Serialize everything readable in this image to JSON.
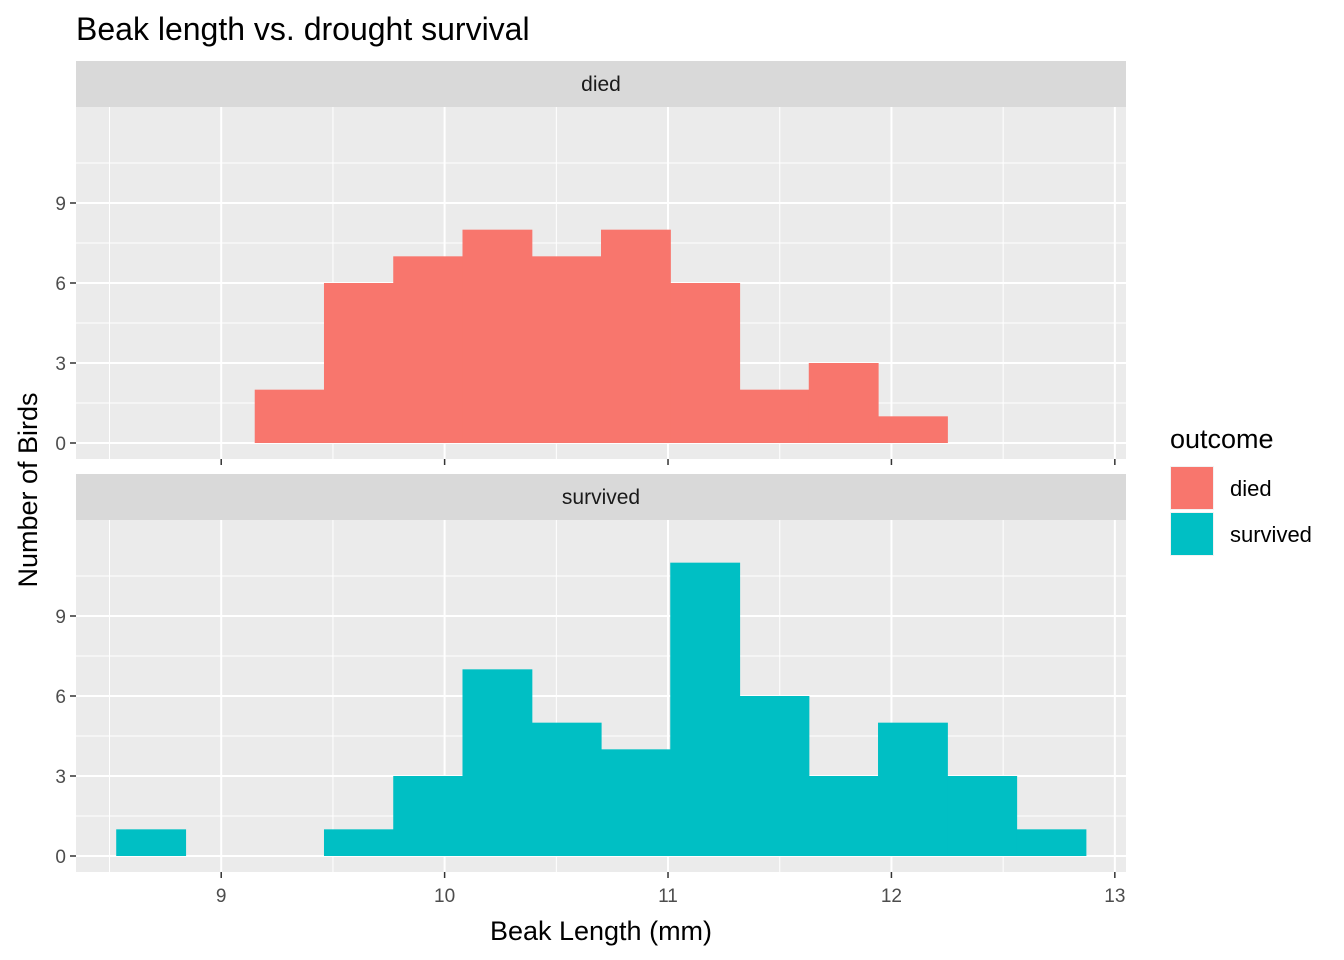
{
  "chart_data": {
    "type": "bar",
    "title": "Beak length vs. drought survival",
    "xlabel": "Beak Length (mm)",
    "ylabel": "Number of Birds",
    "xlim": [
      8.35,
      13.05
    ],
    "ylim": [
      -0.6,
      12.6
    ],
    "x_ticks": [
      9,
      10,
      11,
      12,
      13
    ],
    "y_ticks": [
      0,
      3,
      6,
      9
    ],
    "grid": true,
    "legend": {
      "title": "outcome",
      "position": "right",
      "entries": [
        {
          "label": "died",
          "color": "#F8766D"
        },
        {
          "label": "survived",
          "color": "#00BFC4"
        }
      ]
    },
    "panels": [
      {
        "name": "died",
        "color": "#F8766D",
        "bins": [
          {
            "x0": 9.15,
            "x1": 9.46,
            "count": 2
          },
          {
            "x0": 9.46,
            "x1": 9.77,
            "count": 6
          },
          {
            "x0": 9.77,
            "x1": 10.08,
            "count": 7
          },
          {
            "x0": 10.08,
            "x1": 10.39,
            "count": 8
          },
          {
            "x0": 10.39,
            "x1": 10.7,
            "count": 7
          },
          {
            "x0": 10.7,
            "x1": 11.01,
            "count": 8
          },
          {
            "x0": 11.01,
            "x1": 11.32,
            "count": 6
          },
          {
            "x0": 11.32,
            "x1": 11.63,
            "count": 2
          },
          {
            "x0": 11.63,
            "x1": 11.94,
            "count": 3
          },
          {
            "x0": 11.94,
            "x1": 12.25,
            "count": 1
          }
        ]
      },
      {
        "name": "survived",
        "color": "#00BFC4",
        "bins": [
          {
            "x0": 8.53,
            "x1": 8.84,
            "count": 1
          },
          {
            "x0": 9.46,
            "x1": 9.77,
            "count": 1
          },
          {
            "x0": 9.77,
            "x1": 10.08,
            "count": 3
          },
          {
            "x0": 10.08,
            "x1": 10.39,
            "count": 7
          },
          {
            "x0": 10.39,
            "x1": 10.7,
            "count": 5
          },
          {
            "x0": 10.7,
            "x1": 11.01,
            "count": 4
          },
          {
            "x0": 11.01,
            "x1": 11.32,
            "count": 11
          },
          {
            "x0": 11.32,
            "x1": 11.63,
            "count": 6
          },
          {
            "x0": 11.63,
            "x1": 11.94,
            "count": 3
          },
          {
            "x0": 11.94,
            "x1": 12.25,
            "count": 5
          },
          {
            "x0": 12.25,
            "x1": 12.56,
            "count": 3
          },
          {
            "x0": 12.56,
            "x1": 12.87,
            "count": 1
          }
        ]
      }
    ]
  }
}
